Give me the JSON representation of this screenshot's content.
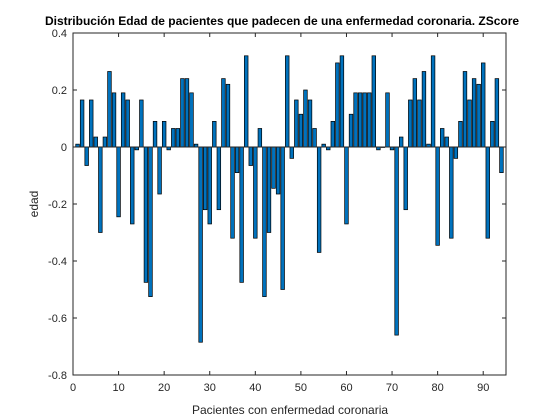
{
  "chart_data": {
    "type": "bar",
    "title": "Distribución Edad de pacientes que padecen de una enfermedad coronaria. ZScore",
    "xlabel": "Pacientes con enfermedad coronaria",
    "ylabel": "edad",
    "xlim": [
      0,
      95
    ],
    "ylim": [
      -0.8,
      0.4
    ],
    "xticks": [
      0,
      10,
      20,
      30,
      40,
      50,
      60,
      70,
      80,
      90
    ],
    "yticks": [
      -0.8,
      -0.6,
      -0.4,
      -0.2,
      0,
      0.2,
      0.4
    ],
    "x": [
      1,
      2,
      3,
      4,
      5,
      6,
      7,
      8,
      9,
      10,
      11,
      12,
      13,
      14,
      15,
      16,
      17,
      18,
      19,
      20,
      21,
      22,
      23,
      24,
      25,
      26,
      27,
      28,
      29,
      30,
      31,
      32,
      33,
      34,
      35,
      36,
      37,
      38,
      39,
      40,
      41,
      42,
      43,
      44,
      45,
      46,
      47,
      48,
      49,
      50,
      51,
      52,
      53,
      54,
      55,
      56,
      57,
      58,
      59,
      60,
      61,
      62,
      63,
      64,
      65,
      66,
      67,
      68,
      69,
      70,
      71,
      72,
      73,
      74,
      75,
      76,
      77,
      78,
      79,
      80,
      81,
      82,
      83,
      84,
      85,
      86,
      87,
      88,
      89,
      90,
      91,
      92,
      93,
      94
    ],
    "values": [
      0.01,
      0.165,
      -0.065,
      0.165,
      0.035,
      -0.3,
      0.035,
      0.265,
      0.19,
      -0.245,
      0.19,
      0.165,
      -0.27,
      -0.01,
      0.165,
      -0.475,
      -0.525,
      0.09,
      -0.165,
      0.09,
      -0.01,
      0.065,
      0.065,
      0.24,
      0.24,
      0.19,
      0.01,
      -0.685,
      -0.22,
      -0.27,
      0.09,
      -0.22,
      0.24,
      0.22,
      -0.32,
      -0.09,
      -0.475,
      0.32,
      -0.065,
      -0.32,
      0.065,
      -0.525,
      -0.3,
      -0.145,
      -0.165,
      -0.5,
      0.32,
      -0.04,
      0.165,
      0.115,
      0.2,
      0.165,
      0.065,
      -0.37,
      0.01,
      -0.01,
      0.09,
      0.295,
      0.32,
      -0.27,
      0.115,
      0.19,
      0.19,
      0.19,
      0.19,
      0.32,
      -0.01,
      0.0,
      0.19,
      -0.01,
      -0.66,
      0.035,
      -0.22,
      0.165,
      0.24,
      0.165,
      0.265,
      0.01,
      0.32,
      -0.345,
      0.065,
      0.035,
      -0.32,
      -0.04,
      0.09,
      0.265,
      0.165,
      0.24,
      0.22,
      0.295,
      -0.32,
      0.09,
      0.24,
      -0.09
    ],
    "bar_color": "#0072BD",
    "edge_color": "#000000",
    "grid": false,
    "legend": "none"
  }
}
